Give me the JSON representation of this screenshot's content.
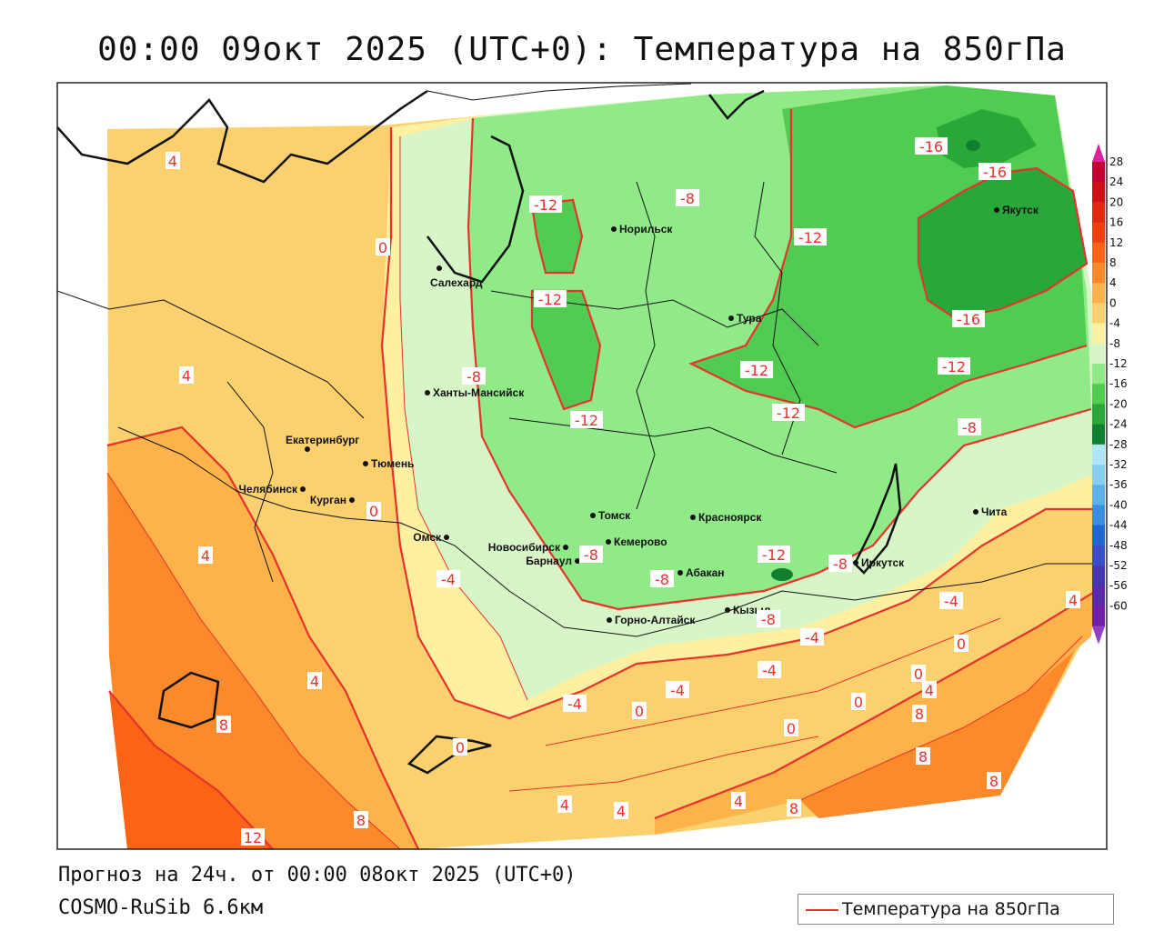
{
  "title": "00:00 09окт 2025 (UTC+0): Температура на 850гПа",
  "footer": {
    "forecast": "Прогноз на 24ч. от 00:00 08окт 2025 (UTC+0)",
    "model": "COSMO-RuSib 6.6км"
  },
  "legend": {
    "label": "Температура на 850гПа",
    "line_color": "#e8322d"
  },
  "colorbar": {
    "ticks": [
      "28",
      "24",
      "20",
      "16",
      "12",
      "8",
      "4",
      "0",
      "-4",
      "-8",
      "-12",
      "-16",
      "-20",
      "-24",
      "-28",
      "-32",
      "-36",
      "-40",
      "-44",
      "-48",
      "-52",
      "-56",
      "-60"
    ],
    "colors": [
      "#c00030",
      "#d01018",
      "#e02810",
      "#f04010",
      "#fa6414",
      "#fc8a2a",
      "#fdb24a",
      "#fbd170",
      "#fdf0a0",
      "#d8f5c8",
      "#90ea88",
      "#50cc50",
      "#28a838",
      "#108030",
      "#b0e4f8",
      "#88cef0",
      "#5eb0ea",
      "#3a8ee0",
      "#2068d0",
      "#3a4ec8",
      "#4636b0",
      "#5a2aa8",
      "#7020a8"
    ],
    "top_arrow_color": "#e0209a",
    "bottom_arrow_color": "#9040c0"
  },
  "cities": [
    {
      "name": "Салехард"
    },
    {
      "name": "Норильск"
    },
    {
      "name": "Якутск"
    },
    {
      "name": "Тура"
    },
    {
      "name": "Ханты-Мансийск"
    },
    {
      "name": "Екатеринбург"
    },
    {
      "name": "Тюмень"
    },
    {
      "name": "Челябинск"
    },
    {
      "name": "Курган"
    },
    {
      "name": "Омск"
    },
    {
      "name": "Новосибирск"
    },
    {
      "name": "Томск"
    },
    {
      "name": "Кемерово"
    },
    {
      "name": "Красноярск"
    },
    {
      "name": "Барнаул"
    },
    {
      "name": "Абакан"
    },
    {
      "name": "Горно-Алтайск"
    },
    {
      "name": "Кызыл"
    },
    {
      "name": "Иркутск"
    },
    {
      "name": "Чита"
    }
  ],
  "isotherm_labels": [
    {
      "text": "4"
    },
    {
      "text": "4"
    },
    {
      "text": "4"
    },
    {
      "text": "0"
    },
    {
      "text": "0"
    },
    {
      "text": "-12"
    },
    {
      "text": "-8"
    },
    {
      "text": "-12"
    },
    {
      "text": "-8"
    },
    {
      "text": "-12"
    },
    {
      "text": "-16"
    },
    {
      "text": "-16"
    },
    {
      "text": "-12"
    },
    {
      "text": "-16"
    },
    {
      "text": "-12"
    },
    {
      "text": "-12"
    },
    {
      "text": "-12"
    },
    {
      "text": "-8"
    },
    {
      "text": "-8"
    },
    {
      "text": "-8"
    },
    {
      "text": "-12"
    },
    {
      "text": "-8"
    },
    {
      "text": "-4"
    },
    {
      "text": "-4"
    },
    {
      "text": "4"
    },
    {
      "text": "-4"
    },
    {
      "text": "-4"
    },
    {
      "text": "-4"
    },
    {
      "text": "-4"
    },
    {
      "text": "0"
    },
    {
      "text": "0"
    },
    {
      "text": "0"
    },
    {
      "text": "4"
    },
    {
      "text": "0"
    },
    {
      "text": "0"
    },
    {
      "text": "4"
    },
    {
      "text": "8"
    },
    {
      "text": "8"
    },
    {
      "text": "8"
    },
    {
      "text": "8"
    },
    {
      "text": "8"
    },
    {
      "text": "4"
    },
    {
      "text": "4"
    },
    {
      "text": "4"
    },
    {
      "text": "8"
    },
    {
      "text": "12"
    },
    {
      "text": "-8"
    },
    {
      "text": "0"
    }
  ]
}
